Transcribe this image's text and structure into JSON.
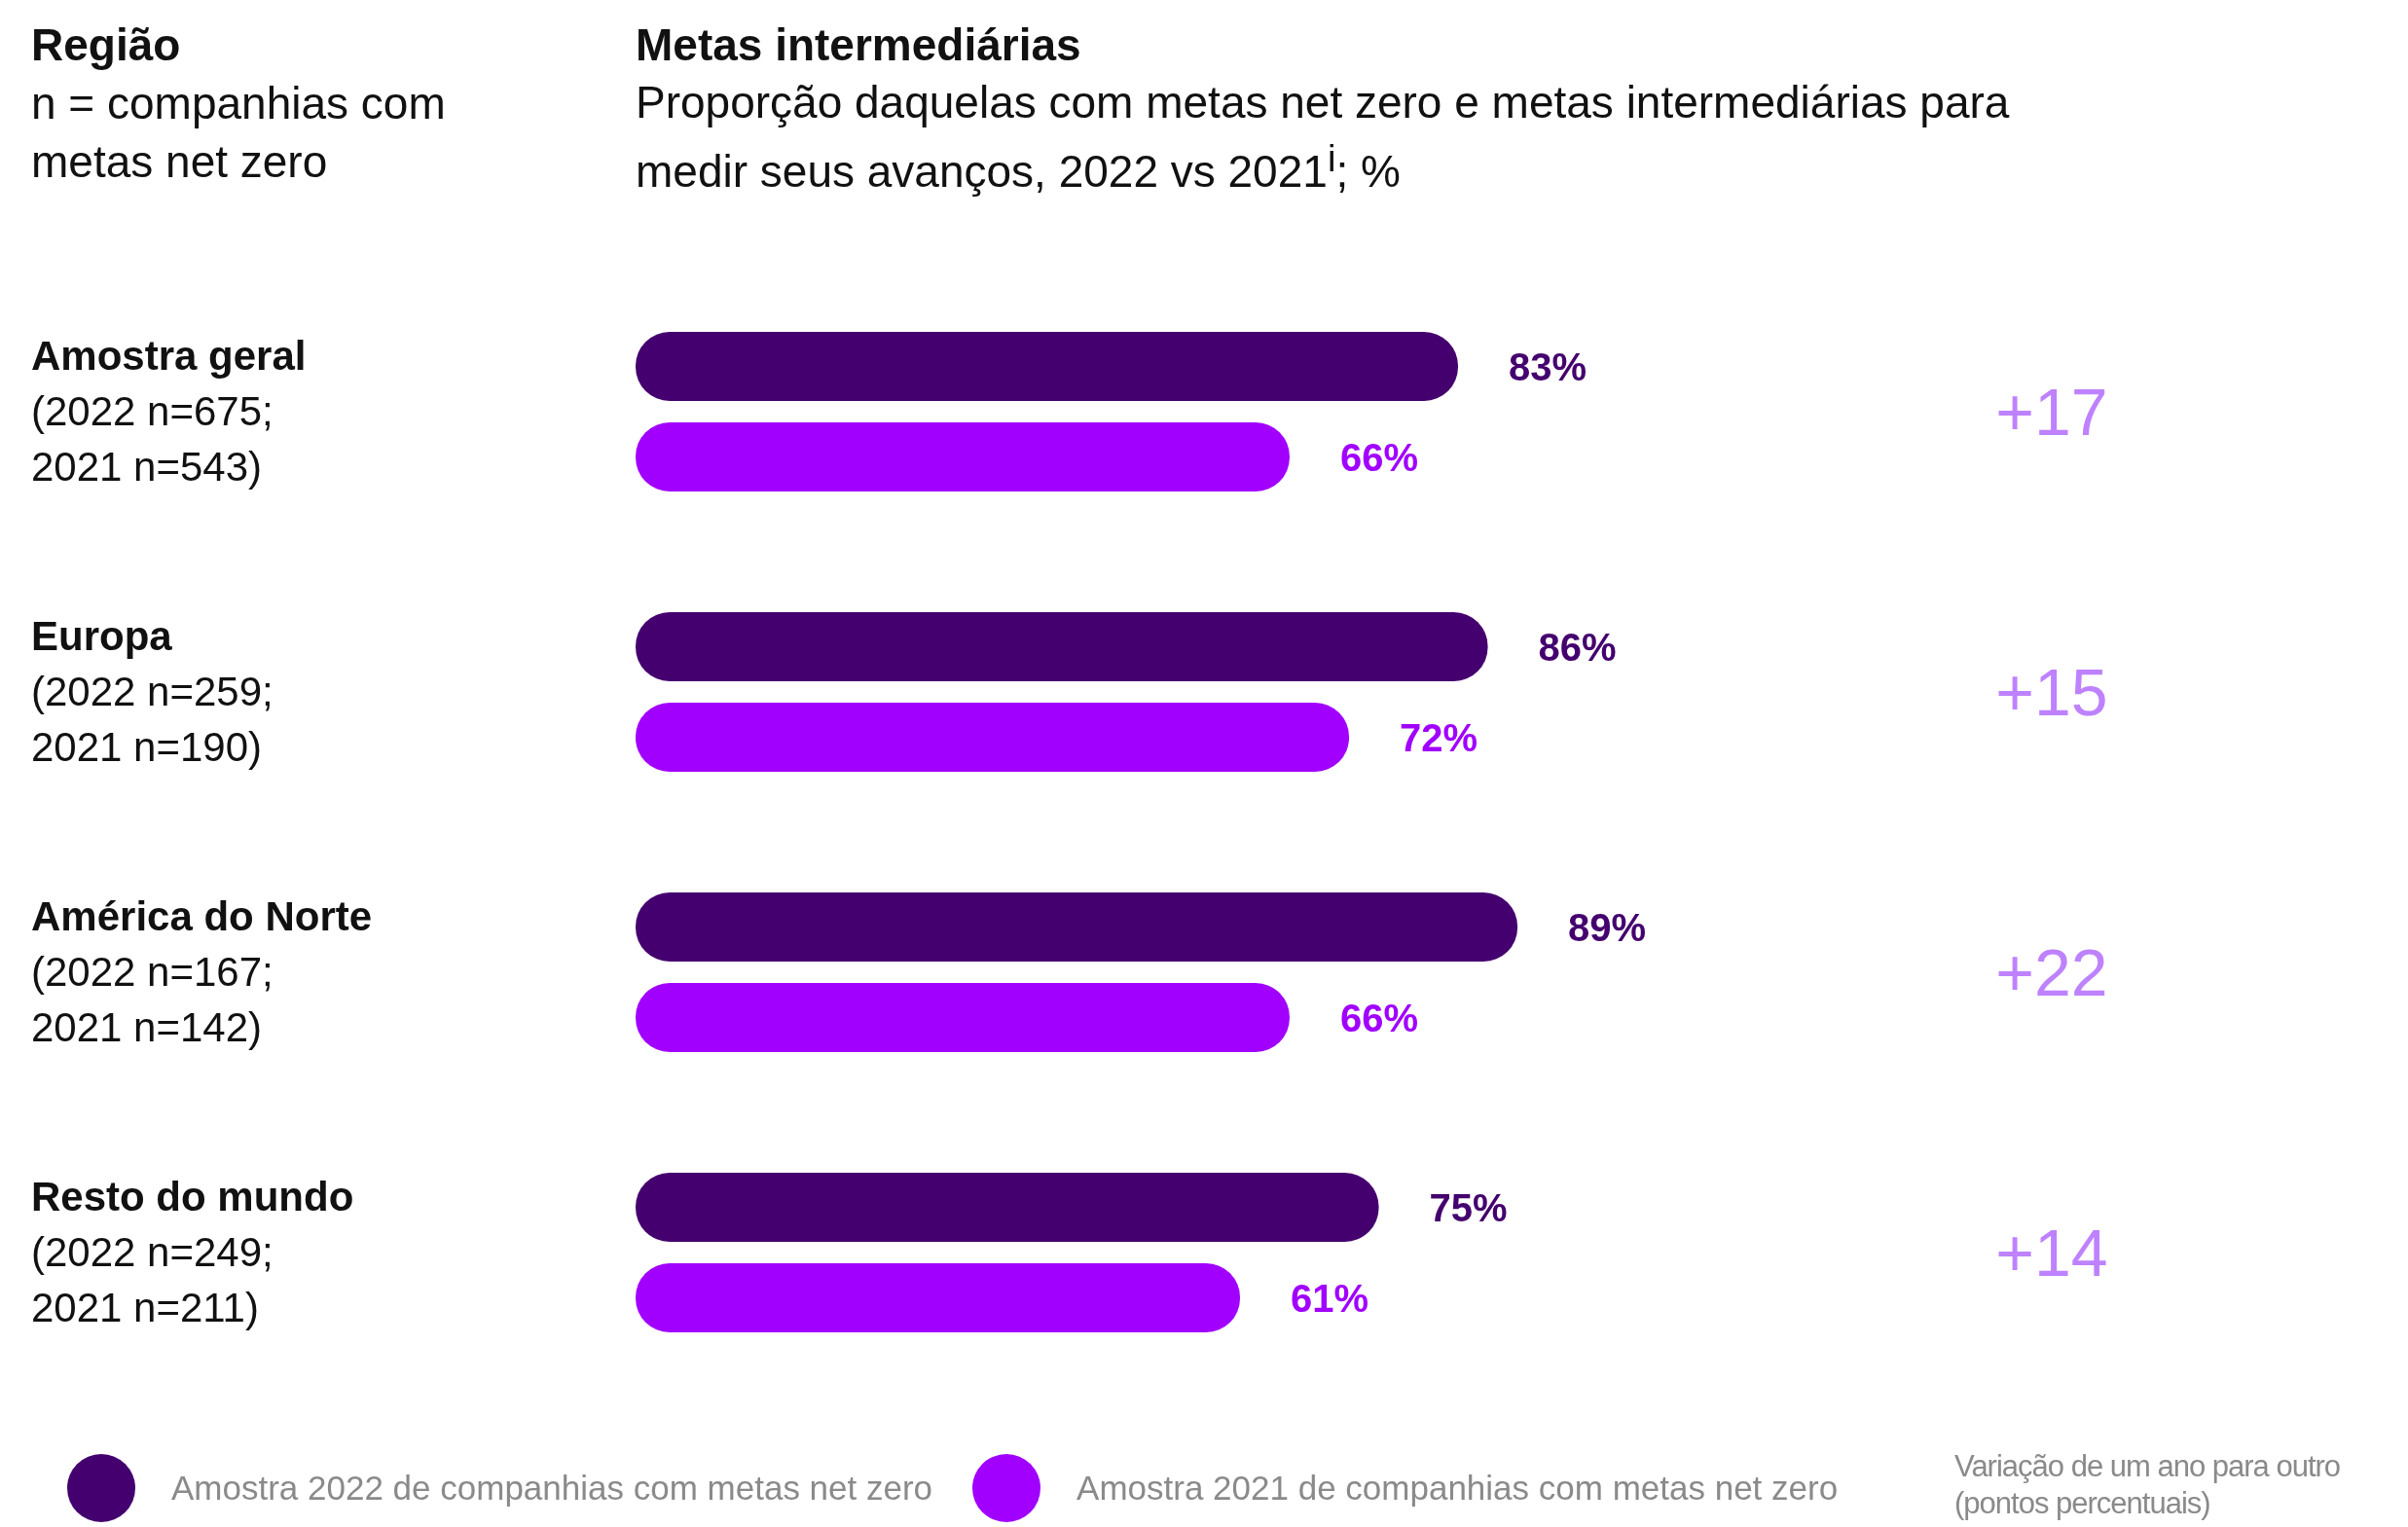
{
  "chart_data": {
    "type": "bar",
    "orientation": "horizontal",
    "title": "Metas intermediárias",
    "subtitle": "Proporção daquelas com metas net zero e metas intermediárias para medir seus avanços, 2022 vs 2021$^{i}$; %",
    "ylabel": "Região\nn = companhias com metas net zero",
    "categories": [
      "Amostra geral\n(2022 n=675;\n2021 n=543)",
      "Europa\n(2022 n=259;\n2021 n=190)",
      "América do Norte\n(2022 n=167;\n2021 n=142)",
      "Resto do mundo\n(2022 n=249;\n2021 n=211)"
    ],
    "series": [
      {
        "name": "Amostra 2022 de companhias com metas net zero",
        "color": "#44006e",
        "values": [
          83,
          86,
          89,
          75
        ],
        "value_labels": [
          "83%",
          "86%",
          "89%",
          "75%"
        ]
      },
      {
        "name": "Amostra 2021 de companhias com metas net zero",
        "color": "#a100ff",
        "values": [
          66,
          72,
          66,
          61
        ],
        "value_labels": [
          "66%",
          "72%",
          "66%",
          "61%"
        ]
      }
    ],
    "legend": "bottom",
    "annotations": [
      "+17",
      "+15",
      "+22",
      "+14",
      "Variação de um ano para outro (pontos percentuais)"
    ]
  }
}
